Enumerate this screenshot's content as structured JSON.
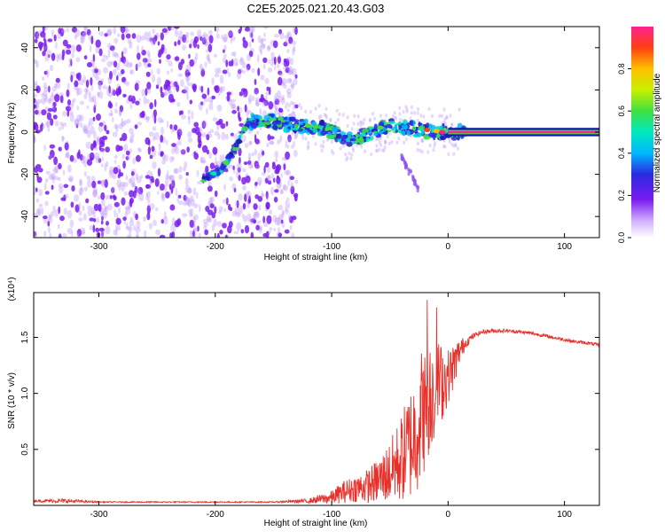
{
  "title": "C2E5.2025.021.20.43.G03",
  "colors": {
    "snr_line": "#e8302a",
    "background": "#ffffff",
    "scatter_purple": "#7a1cf0",
    "axis": "#000000"
  },
  "chart_data": [
    {
      "type": "heatmap",
      "xlabel": "Height of straight line (km)",
      "ylabel": "Frequency (Hz)",
      "xlim": [
        -356,
        130
      ],
      "ylim": [
        -50,
        50
      ],
      "xticks": [
        -300,
        -200,
        -100,
        0,
        100
      ],
      "yticks": [
        -40,
        -20,
        0,
        20,
        40
      ],
      "colorbar": {
        "label": "Normalized spectral amplitude",
        "range": [
          0,
          1
        ],
        "ticks": [
          "0.0",
          "0.2",
          "0.4",
          "0.6",
          "0.8"
        ],
        "tick_values": [
          0,
          0.2,
          0.4,
          0.6,
          0.8
        ]
      },
      "noise_region_x": [
        -356,
        -140
      ],
      "ridge": {
        "x": [
          -210,
          -195,
          -185,
          -178,
          -172,
          -165,
          -150,
          -130,
          -110,
          -95,
          -85,
          -75,
          -65,
          -55,
          -45,
          -35,
          -25,
          -15,
          -5,
          5,
          15
        ],
        "freq": [
          -22,
          -18,
          -10,
          -2,
          4,
          6,
          5,
          3,
          2,
          -1,
          -3,
          -2,
          0,
          2,
          3,
          2,
          1,
          0,
          0,
          0,
          0
        ]
      },
      "branch": {
        "x": [
          -40,
          -30,
          -25
        ],
        "freq": [
          -12,
          -22,
          -28
        ]
      },
      "carrier": {
        "x": [
          0,
          130
        ],
        "freq": 0,
        "band_hz": 2
      }
    },
    {
      "type": "line",
      "xlabel": "Height of straight line (km)",
      "ylabel": "SNR (10 * v/v)",
      "multiplier": "(x10⁴)",
      "xlim": [
        -356,
        130
      ],
      "ylim": [
        0,
        1.9
      ],
      "xticks": [
        -300,
        -200,
        -100,
        0,
        100
      ],
      "yticks": [
        0.5,
        1.0,
        1.5
      ],
      "ytick_labels": [
        "0.5",
        "1.0",
        "1.5"
      ],
      "series": [
        {
          "x": [
            -356,
            -330,
            -300,
            -250,
            -200,
            -150,
            -120,
            -100,
            -90,
            -80,
            -70,
            -60,
            -50,
            -40,
            -30,
            -25,
            -20,
            -15,
            -10,
            -5,
            0,
            5,
            10,
            15,
            20,
            25,
            30,
            40,
            50,
            60,
            70,
            80,
            90,
            100,
            110,
            120,
            130
          ],
          "values": [
            0.04,
            0.04,
            0.03,
            0.03,
            0.03,
            0.03,
            0.04,
            0.07,
            0.12,
            0.15,
            0.17,
            0.22,
            0.3,
            0.42,
            0.6,
            0.75,
            0.9,
            1.0,
            1.05,
            1.1,
            1.15,
            1.25,
            1.38,
            1.45,
            1.5,
            1.53,
            1.55,
            1.56,
            1.56,
            1.55,
            1.54,
            1.52,
            1.5,
            1.48,
            1.46,
            1.45,
            1.43
          ],
          "noise_amp": [
            0.01,
            0.02,
            0.005,
            0.005,
            0.005,
            0.005,
            0.02,
            0.06,
            0.1,
            0.12,
            0.15,
            0.2,
            0.28,
            0.4,
            0.55,
            0.6,
            0.6,
            0.5,
            0.45,
            0.35,
            0.25,
            0.2,
            0.12,
            0.05,
            0.03,
            0.02,
            0.02,
            0.02,
            0.015,
            0.015,
            0.015,
            0.015,
            0.015,
            0.015,
            0.015,
            0.015,
            0.015
          ]
        }
      ]
    }
  ]
}
